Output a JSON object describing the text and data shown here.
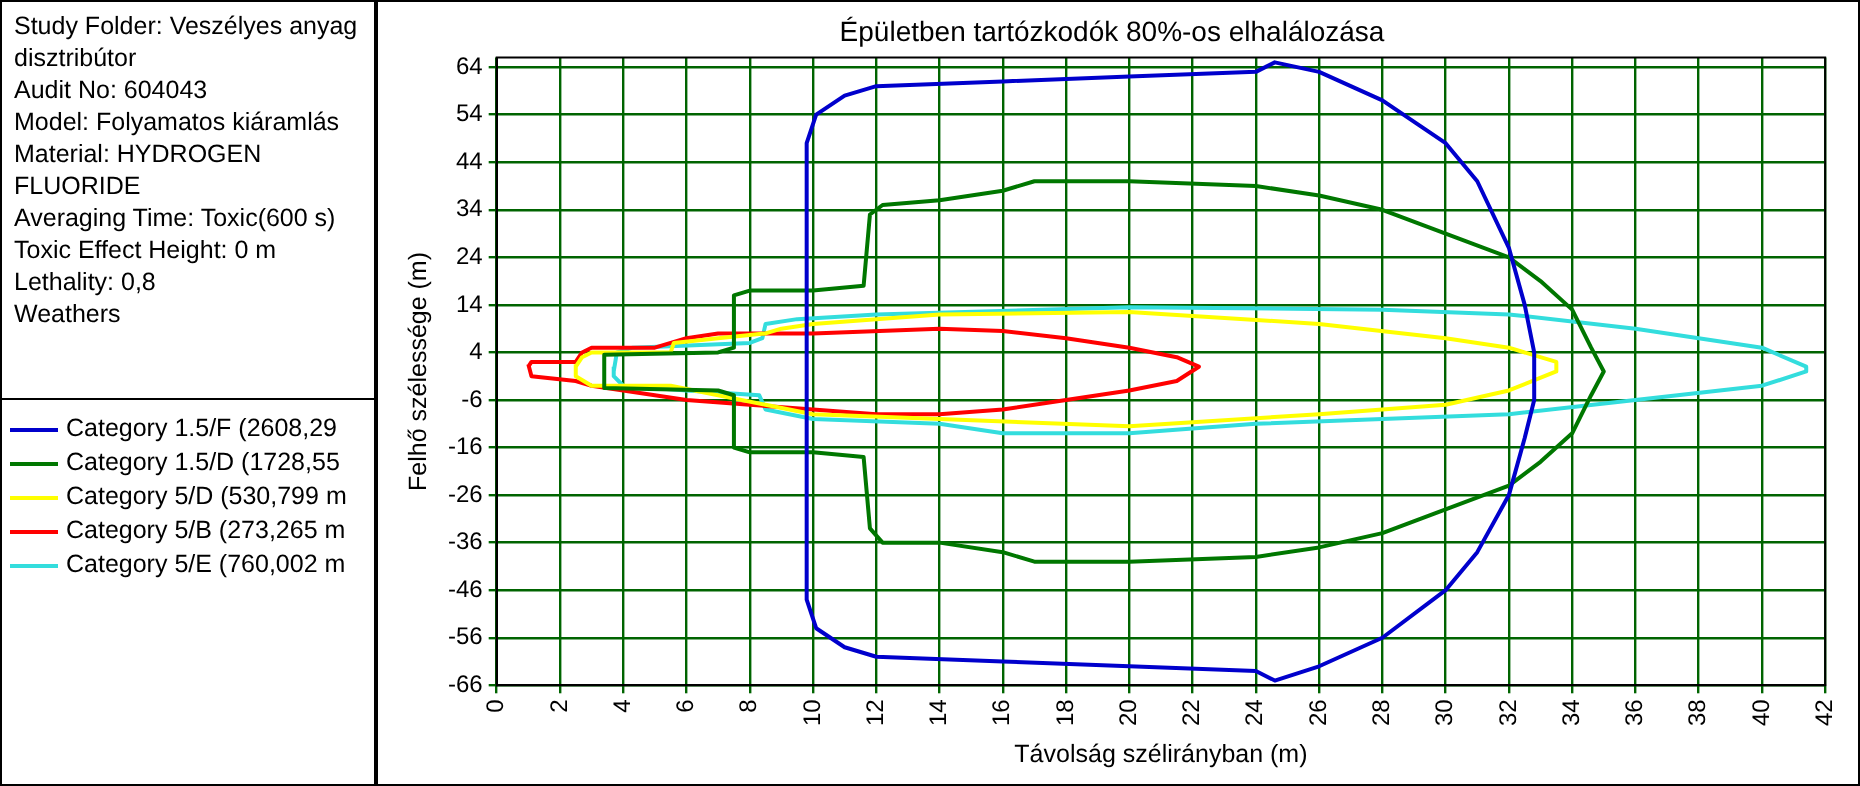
{
  "chart_data": {
    "type": "line",
    "title": "Épületben tartózkodók 80%-os elhalálozása",
    "xlabel": "Távolság szélirányban (m)",
    "ylabel": "Felhő szélessége (m)",
    "annotations": [
      "Study Folder: Veszélyes anyag disztribútor",
      "Audit No: 604043",
      "Model: Folyamatos kiáramlás",
      "Material: HYDROGEN FLUORIDE",
      "Averaging Time: Toxic(600 s)",
      "Toxic Effect Height: 0 m",
      "Lethality: 0,8",
      "Weathers"
    ],
    "xlim": [
      0,
      42
    ],
    "xticks": [
      0,
      2,
      4,
      6,
      8,
      10,
      12,
      14,
      16,
      18,
      20,
      22,
      24,
      26,
      28,
      30,
      32,
      34,
      36,
      38,
      40,
      42
    ],
    "ylim": [
      -66,
      66
    ],
    "yticks": [
      -66,
      -56,
      -46,
      -36,
      -26,
      -16,
      -6,
      4,
      14,
      24,
      34,
      44,
      54,
      64
    ],
    "grid": true,
    "legend": "left",
    "marker": "none",
    "line_style": "solid",
    "series": [
      {
        "name": "Category 1.5/F (2608,29",
        "color": "#0000cc",
        "x": [
          9.8,
          9.8,
          10.1,
          11,
          12,
          16,
          20,
          24,
          24.6,
          26,
          28,
          30,
          31,
          32,
          32.5,
          32.8,
          32.8,
          32.5,
          32,
          31,
          30,
          28,
          26,
          24.6,
          24,
          20,
          16,
          12,
          11,
          10.1,
          9.8,
          9.8
        ],
        "values": [
          0,
          48,
          54,
          58,
          60,
          61,
          62,
          63,
          65,
          63,
          57,
          48,
          40,
          26,
          14,
          4,
          -6,
          -14,
          -26,
          -38,
          -46,
          -56,
          -62,
          -65,
          -63,
          -62,
          -61,
          -60,
          -58,
          -54,
          -48,
          2
        ]
      },
      {
        "name": "Category 1.5/D (1728,55",
        "color": "#007700",
        "x": [
          3.4,
          3.4,
          7,
          7.5,
          7.5,
          8,
          10,
          11.6,
          11.8,
          12.2,
          14,
          16,
          17,
          20,
          24,
          26,
          28,
          30,
          32,
          33,
          34,
          34.6,
          35,
          34.6,
          34,
          33,
          32,
          30,
          28,
          26,
          24,
          20,
          17,
          16,
          14,
          12.2,
          11.8,
          11.6,
          10,
          8,
          7.5,
          7.5,
          7,
          3.4,
          3.4
        ],
        "values": [
          0,
          3.5,
          4,
          5,
          16,
          17,
          17,
          18,
          33,
          35,
          36,
          38,
          40,
          40,
          39,
          37,
          34,
          29,
          24,
          19,
          13,
          5,
          0,
          -5,
          -13,
          -19,
          -24,
          -29,
          -34,
          -37,
          -39,
          -40,
          -40,
          -38,
          -36,
          -36,
          -33,
          -18,
          -17,
          -17,
          -16,
          -5,
          -4,
          -3.5,
          1
        ]
      },
      {
        "name": "Category 5/D (530,799 m",
        "color": "#ffff00",
        "x": [
          2.5,
          2.7,
          3,
          5.5,
          5.6,
          7,
          8.5,
          9,
          10,
          14,
          20,
          26,
          30,
          32,
          33.5,
          33.5,
          32,
          30,
          26,
          20,
          14,
          10,
          8.5,
          5.5,
          3,
          2.5,
          2.5
        ],
        "values": [
          1,
          3,
          4,
          4,
          6,
          7,
          8,
          9,
          10,
          12,
          12.5,
          10,
          7,
          5,
          2,
          0,
          -4,
          -7,
          -9,
          -11.5,
          -10,
          -9,
          -7,
          -3,
          -3,
          -1,
          1.5
        ]
      },
      {
        "name": "Category 5/B (273,265 m",
        "color": "#ff0000",
        "x": [
          1,
          1.1,
          2.5,
          2.7,
          3,
          5,
          6,
          7,
          8,
          10,
          14,
          16,
          18,
          20,
          21.5,
          22.2,
          21.5,
          20,
          18,
          16,
          14,
          12,
          10,
          8,
          6,
          5,
          3,
          2.5,
          1.1,
          1
        ],
        "values": [
          1,
          2,
          2,
          4,
          5,
          5,
          7,
          8,
          8,
          8,
          9,
          8.5,
          7,
          5,
          3,
          1,
          -2,
          -4,
          -6,
          -8,
          -9,
          -9,
          -8,
          -7,
          -6,
          -5,
          -3,
          -2,
          -1,
          1.5
        ]
      },
      {
        "name": "Category 5/E (760,002 m",
        "color": "#33dddd",
        "x": [
          3.7,
          3.8,
          4.3,
          8,
          8.4,
          8.5,
          9.5,
          12,
          20,
          28,
          32,
          36,
          40,
          41.4,
          41.4,
          40,
          36,
          32,
          28,
          24,
          20,
          16,
          14,
          10,
          8.5,
          8.3,
          6,
          4,
          3.7,
          3.7
        ],
        "values": [
          0,
          4,
          5,
          6,
          7,
          10,
          11,
          12,
          13.5,
          13,
          12,
          9,
          5,
          1,
          0,
          -3,
          -6,
          -9,
          -10,
          -11,
          -13,
          -13,
          -11,
          -10,
          -8,
          -5,
          -4,
          -3,
          -1,
          1
        ]
      }
    ]
  }
}
